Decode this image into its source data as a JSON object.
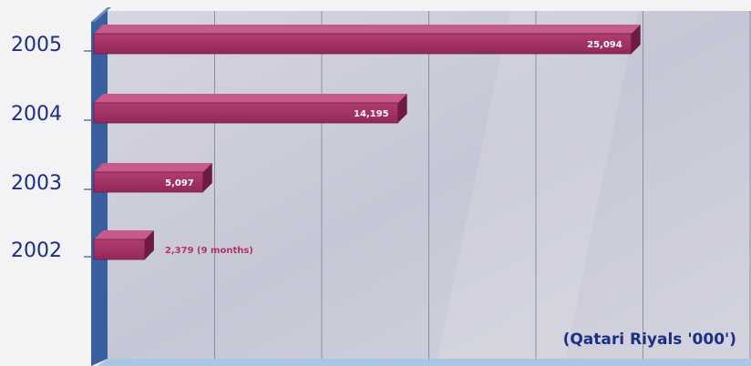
{
  "chart_data": {
    "type": "bar",
    "orientation": "horizontal",
    "categories": [
      "2005",
      "2004",
      "2003",
      "2002"
    ],
    "values": [
      25094,
      14195,
      5097,
      2379
    ],
    "value_labels": [
      "25,094",
      "14,195",
      "5,097",
      "2,379 (9 months)"
    ],
    "unit_label": "(Qatari Riyals '000')",
    "xlim": [
      0,
      30000
    ],
    "grid": true,
    "bar_color": "#a63466",
    "panel_color": "#c9cad8",
    "axis_color": "#3a5f9e",
    "text_color": "#1c2f86"
  }
}
